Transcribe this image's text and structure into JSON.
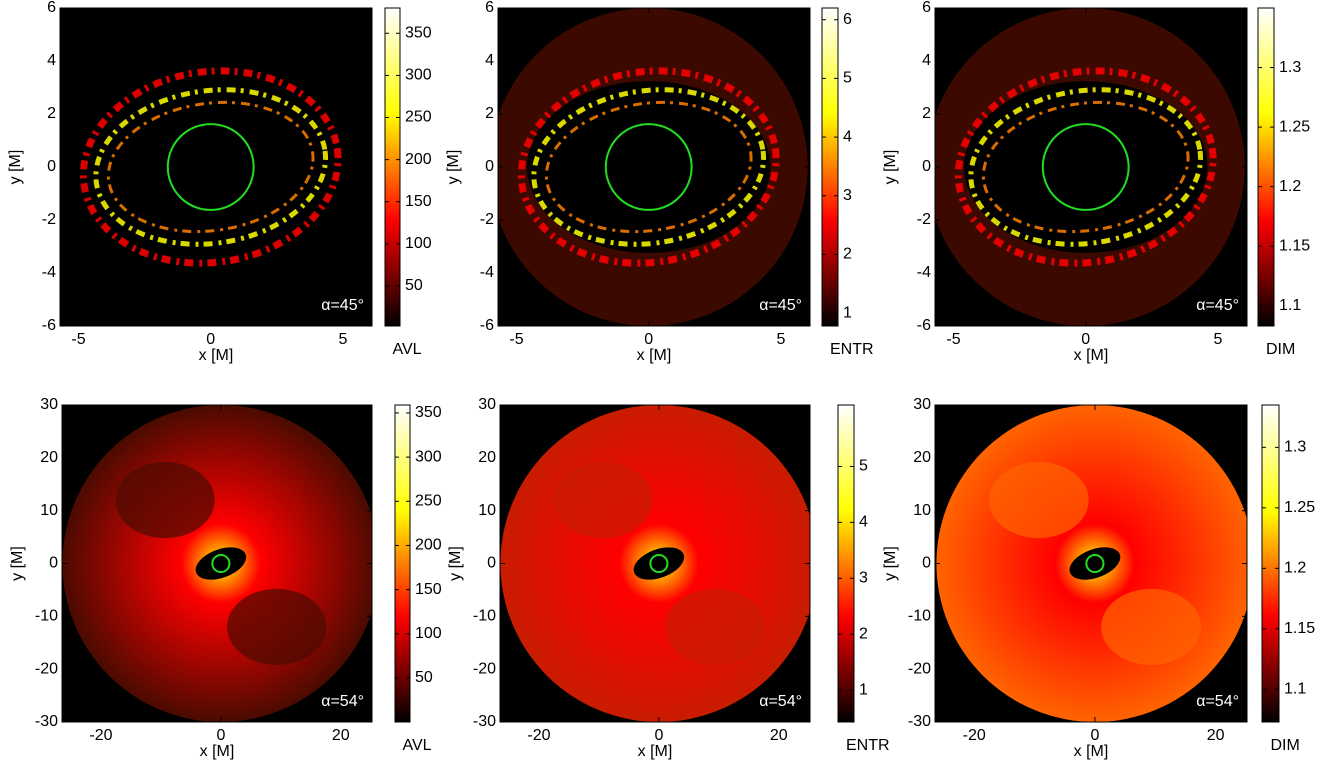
{
  "chart_data": [
    {
      "type": "heatmap",
      "xlabel": "x [M]",
      "ylabel": "y [M]",
      "xlim": [
        -5.7,
        6.1
      ],
      "ylim": [
        -6,
        6
      ],
      "xticks": [
        -5,
        0,
        5
      ],
      "yticks": [
        -6,
        -4,
        -2,
        0,
        2,
        4,
        6
      ],
      "annotation": "α=45°",
      "colormap": [
        "#000000",
        "#ff0000",
        "#ffff00",
        "#ffffff"
      ],
      "colorbar": {
        "label": "AVL",
        "lim": [
          2.5,
          380
        ],
        "ticks": [
          50,
          100,
          150,
          200,
          250,
          300,
          350
        ]
      }
    },
    {
      "type": "heatmap",
      "xlabel": "x [M]",
      "ylabel": "y [M]",
      "xlim": [
        -5.7,
        6.1
      ],
      "ylim": [
        -6,
        6
      ],
      "xticks": [
        -5,
        0,
        5
      ],
      "yticks": [
        -6,
        -4,
        -2,
        0,
        2,
        4,
        6
      ],
      "annotation": "α=45°",
      "colormap": [
        "#000000",
        "#ff0000",
        "#ffff00",
        "#ffffff"
      ],
      "colorbar": {
        "label": "ENTR",
        "lim": [
          0.78,
          6.2
        ],
        "ticks": [
          1,
          2,
          3,
          4,
          5,
          6
        ]
      }
    },
    {
      "type": "heatmap",
      "xlabel": "x [M]",
      "ylabel": "y [M]",
      "xlim": [
        -5.7,
        6.1
      ],
      "ylim": [
        -6,
        6
      ],
      "xticks": [
        -5,
        0,
        5
      ],
      "yticks": [
        -6,
        -4,
        -2,
        0,
        2,
        4,
        6
      ],
      "annotation": "α=45°",
      "colormap": [
        "#000000",
        "#ff0000",
        "#ffff00",
        "#ffffff"
      ],
      "colorbar": {
        "label": "DIM",
        "lim": [
          1.083,
          1.35
        ],
        "ticks": [
          1.1,
          1.15,
          1.2,
          1.25,
          1.3
        ]
      }
    },
    {
      "type": "heatmap",
      "xlabel": "x [M]",
      "ylabel": "y [M]",
      "xlim": [
        -26.5,
        25.2
      ],
      "ylim": [
        -30,
        30
      ],
      "xticks": [
        -20,
        0,
        20
      ],
      "yticks": [
        -30,
        -20,
        -10,
        0,
        10,
        20,
        30
      ],
      "annotation": "α=54°",
      "colormap": [
        "#000000",
        "#ff0000",
        "#ffff00",
        "#ffffff"
      ],
      "colorbar": {
        "label": "AVL",
        "lim": [
          0.2,
          359
        ],
        "ticks": [
          50,
          100,
          150,
          200,
          250,
          300,
          350
        ]
      }
    },
    {
      "type": "heatmap",
      "xlabel": "x [M]",
      "ylabel": "y [M]",
      "xlim": [
        -26.5,
        25.2
      ],
      "ylim": [
        -30,
        30
      ],
      "xticks": [
        -20,
        0,
        20
      ],
      "yticks": [
        -30,
        -20,
        -10,
        0,
        10,
        20,
        30
      ],
      "annotation": "α=54°",
      "colormap": [
        "#000000",
        "#ff0000",
        "#ffff00",
        "#ffffff"
      ],
      "colorbar": {
        "label": "ENTR",
        "lim": [
          0.43,
          6.1
        ],
        "ticks": [
          1,
          2,
          3,
          4,
          5
        ]
      }
    },
    {
      "type": "heatmap",
      "xlabel": "x [M]",
      "ylabel": "y [M]",
      "xlim": [
        -26.5,
        25.2
      ],
      "ylim": [
        -30,
        30
      ],
      "xticks": [
        -20,
        0,
        20
      ],
      "yticks": [
        -30,
        -20,
        -10,
        0,
        10,
        20,
        30
      ],
      "annotation": "α=54°",
      "colormap": [
        "#000000",
        "#ff0000",
        "#ffff00",
        "#ffffff"
      ],
      "colorbar": {
        "label": "DIM",
        "lim": [
          1.073,
          1.335
        ],
        "ticks": [
          1.1,
          1.15,
          1.2,
          1.25,
          1.3
        ]
      }
    }
  ]
}
